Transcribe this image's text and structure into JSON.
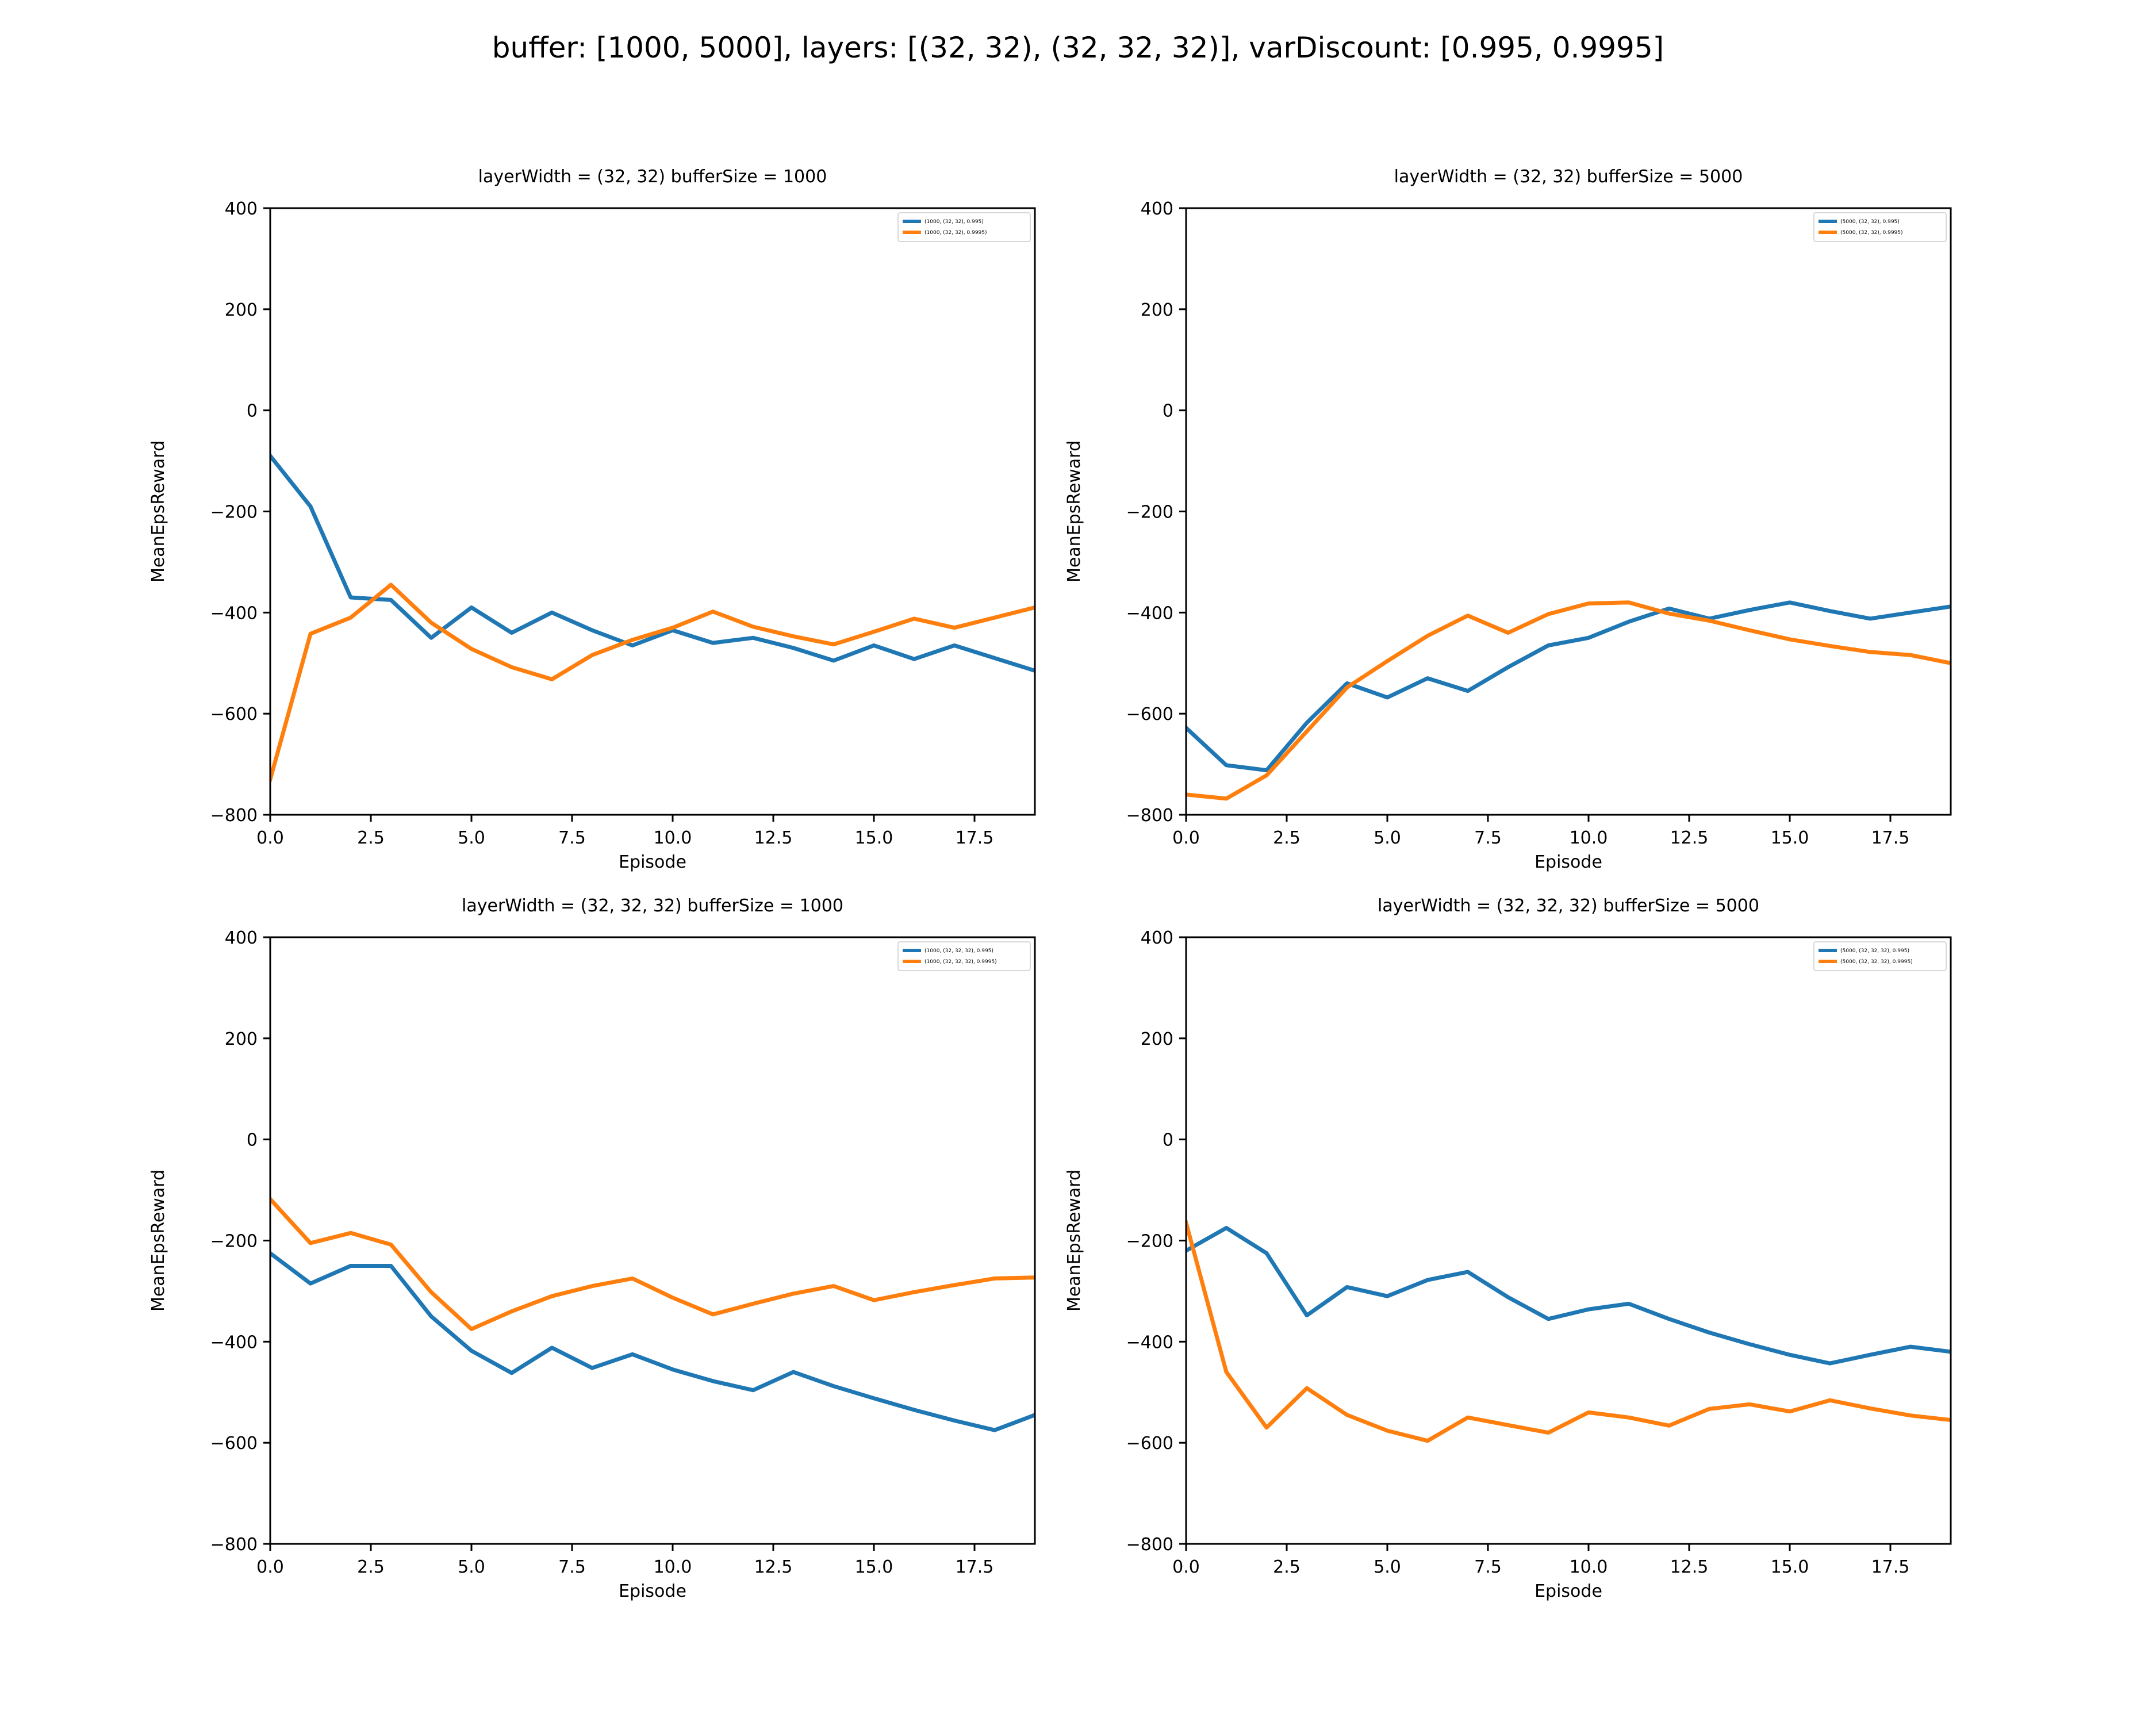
{
  "figure": {
    "suptitle": "buffer: [1000, 5000], layers: [(32, 32), (32, 32, 32)], varDiscount: [0.995, 0.9995]"
  },
  "colors": {
    "series_0": "#1f77b4",
    "series_1": "#ff7f0e",
    "axes": "#000000",
    "background": "#ffffff"
  },
  "chart_data": [
    {
      "type": "line",
      "title": "layerWidth = (32, 32) bufferSize = 1000",
      "xlabel": "Episode",
      "ylabel": "MeanEpsReward",
      "xlim": [
        0,
        19
      ],
      "ylim": [
        -800,
        400
      ],
      "xticks": [
        0.0,
        2.5,
        5.0,
        7.5,
        10.0,
        12.5,
        15.0,
        17.5
      ],
      "xtick_labels": [
        "0.0",
        "2.5",
        "5.0",
        "7.5",
        "10.0",
        "12.5",
        "15.0",
        "17.5"
      ],
      "yticks": [
        -800,
        -600,
        -400,
        -200,
        0,
        200,
        400
      ],
      "ytick_labels": [
        "−800",
        "−600",
        "−400",
        "−200",
        "0",
        "200",
        "400"
      ],
      "grid": false,
      "legend_position": "top-right",
      "x": [
        0,
        1,
        2,
        3,
        4,
        5,
        6,
        7,
        8,
        9,
        10,
        11,
        12,
        13,
        14,
        15,
        16,
        17,
        18,
        19
      ],
      "series": [
        {
          "name": "(1000, (32, 32), 0.995)",
          "values": [
            -90,
            -190,
            -370,
            -375,
            -450,
            -390,
            -440,
            -400,
            -435,
            -465,
            -435,
            -460,
            -450,
            -470,
            -495,
            -465,
            -492,
            -465,
            -490,
            -515
          ]
        },
        {
          "name": "(1000, (32, 32), 0.9995)",
          "values": [
            -730,
            -442,
            -410,
            -345,
            -420,
            -472,
            -508,
            -532,
            -484,
            -454,
            -430,
            -398,
            -428,
            -447,
            -463,
            -438,
            -412,
            -430,
            -410,
            -390
          ]
        }
      ]
    },
    {
      "type": "line",
      "title": "layerWidth = (32, 32) bufferSize = 5000",
      "xlabel": "Episode",
      "ylabel": "MeanEpsReward",
      "xlim": [
        0,
        19
      ],
      "ylim": [
        -800,
        400
      ],
      "xticks": [
        0.0,
        2.5,
        5.0,
        7.5,
        10.0,
        12.5,
        15.0,
        17.5
      ],
      "xtick_labels": [
        "0.0",
        "2.5",
        "5.0",
        "7.5",
        "10.0",
        "12.5",
        "15.0",
        "17.5"
      ],
      "yticks": [
        -800,
        -600,
        -400,
        -200,
        0,
        200,
        400
      ],
      "ytick_labels": [
        "−800",
        "−600",
        "−400",
        "−200",
        "0",
        "200",
        "400"
      ],
      "grid": false,
      "legend_position": "top-right",
      "x": [
        0,
        1,
        2,
        3,
        4,
        5,
        6,
        7,
        8,
        9,
        10,
        11,
        12,
        13,
        14,
        15,
        16,
        17,
        18,
        19
      ],
      "series": [
        {
          "name": "(5000, (32, 32), 0.995)",
          "values": [
            -628,
            -702,
            -712,
            -618,
            -540,
            -568,
            -530,
            -555,
            -508,
            -465,
            -450,
            -418,
            -392,
            -412,
            -395,
            -380,
            -397,
            -412,
            -400,
            -388
          ]
        },
        {
          "name": "(5000, (32, 32), 0.9995)",
          "values": [
            -760,
            -768,
            -722,
            -635,
            -548,
            -496,
            -446,
            -406,
            -440,
            -403,
            -382,
            -380,
            -402,
            -416,
            -435,
            -453,
            -466,
            -478,
            -484,
            -500
          ]
        }
      ]
    },
    {
      "type": "line",
      "title": "layerWidth = (32, 32, 32) bufferSize = 1000",
      "xlabel": "Episode",
      "ylabel": "MeanEpsReward",
      "xlim": [
        0,
        19
      ],
      "ylim": [
        -800,
        400
      ],
      "xticks": [
        0.0,
        2.5,
        5.0,
        7.5,
        10.0,
        12.5,
        15.0,
        17.5
      ],
      "xtick_labels": [
        "0.0",
        "2.5",
        "5.0",
        "7.5",
        "10.0",
        "12.5",
        "15.0",
        "17.5"
      ],
      "yticks": [
        -800,
        -600,
        -400,
        -200,
        0,
        200,
        400
      ],
      "ytick_labels": [
        "−800",
        "−600",
        "−400",
        "−200",
        "0",
        "200",
        "400"
      ],
      "grid": false,
      "legend_position": "top-right",
      "x": [
        0,
        1,
        2,
        3,
        4,
        5,
        6,
        7,
        8,
        9,
        10,
        11,
        12,
        13,
        14,
        15,
        16,
        17,
        18,
        19
      ],
      "series": [
        {
          "name": "(1000, (32, 32, 32), 0.995)",
          "values": [
            -225,
            -285,
            -250,
            -250,
            -350,
            -418,
            -462,
            -412,
            -452,
            -425,
            -455,
            -478,
            -496,
            -460,
            -488,
            -512,
            -535,
            -556,
            -575,
            -545
          ]
        },
        {
          "name": "(1000, (32, 32, 32), 0.9995)",
          "values": [
            -118,
            -205,
            -185,
            -208,
            -302,
            -375,
            -340,
            -310,
            -290,
            -275,
            -313,
            -346,
            -325,
            -305,
            -290,
            -318,
            -302,
            -288,
            -275,
            -273
          ]
        }
      ]
    },
    {
      "type": "line",
      "title": "layerWidth = (32, 32, 32) bufferSize = 5000",
      "xlabel": "Episode",
      "ylabel": "MeanEpsReward",
      "xlim": [
        0,
        19
      ],
      "ylim": [
        -800,
        400
      ],
      "xticks": [
        0.0,
        2.5,
        5.0,
        7.5,
        10.0,
        12.5,
        15.0,
        17.5
      ],
      "xtick_labels": [
        "0.0",
        "2.5",
        "5.0",
        "7.5",
        "10.0",
        "12.5",
        "15.0",
        "17.5"
      ],
      "yticks": [
        -800,
        -600,
        -400,
        -200,
        0,
        200,
        400
      ],
      "ytick_labels": [
        "−800",
        "−600",
        "−400",
        "−200",
        "0",
        "200",
        "400"
      ],
      "grid": false,
      "legend_position": "top-right",
      "x": [
        0,
        1,
        2,
        3,
        4,
        5,
        6,
        7,
        8,
        9,
        10,
        11,
        12,
        13,
        14,
        15,
        16,
        17,
        18,
        19
      ],
      "series": [
        {
          "name": "(5000, (32, 32, 32), 0.995)",
          "values": [
            -220,
            -175,
            -225,
            -348,
            -292,
            -310,
            -278,
            -262,
            -312,
            -355,
            -336,
            -325,
            -355,
            -382,
            -405,
            -426,
            -443,
            -426,
            -410,
            -420
          ]
        },
        {
          "name": "(5000, (32, 32, 32), 0.9995)",
          "values": [
            -165,
            -460,
            -570,
            -492,
            -545,
            -576,
            -596,
            -550,
            -565,
            -580,
            -540,
            -550,
            -566,
            -533,
            -524,
            -538,
            -516,
            -532,
            -546,
            -555
          ]
        }
      ]
    }
  ]
}
